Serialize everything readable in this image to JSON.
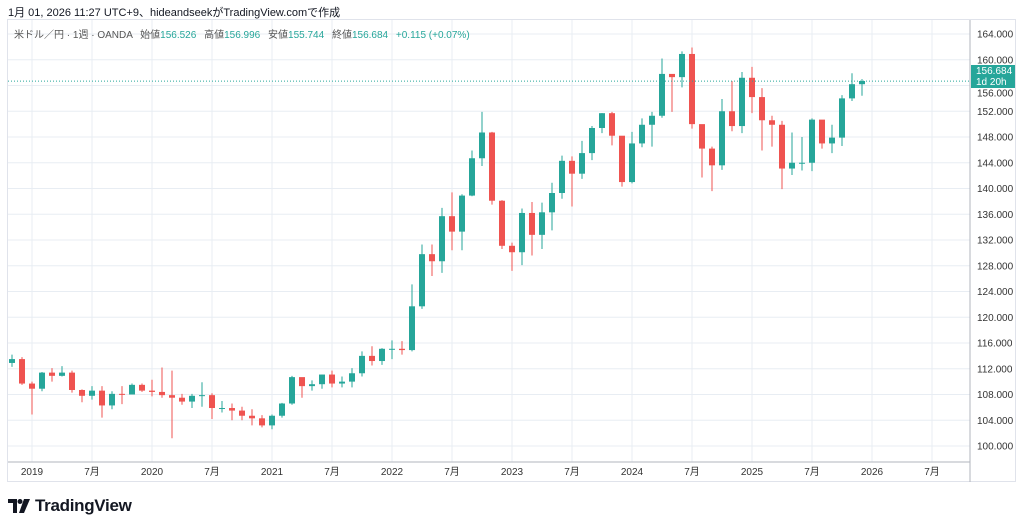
{
  "caption": "1月 01, 2026 11:27 UTC+9、hideandseekがTradingView.comで作成",
  "legend": {
    "symbol": "米ドル／円 · 1週 · OANDA",
    "open_label": "始値",
    "open": "156.526",
    "high_label": "高値",
    "high": "156.996",
    "low_label": "安値",
    "low": "155.744",
    "close_label": "終値",
    "close": "156.684",
    "change": "+0.115 (+0.07%)"
  },
  "price_label": {
    "price": "156.684",
    "countdown": "1d 20h"
  },
  "logo": {
    "text": "TradingView"
  },
  "colors": {
    "up": "#26a69a",
    "down": "#ef5350",
    "grid": "#e8edf3",
    "accent": "#26a69a"
  },
  "chart_data": {
    "type": "candlestick",
    "interval": "1週",
    "note_resolution": "approximated monthly",
    "ylim": [
      97,
      166
    ],
    "yticks": [
      "100.000",
      "104.000",
      "108.000",
      "112.000",
      "116.000",
      "120.000",
      "124.000",
      "128.000",
      "132.000",
      "136.000",
      "140.000",
      "144.000",
      "148.000",
      "152.000",
      "156.000",
      "160.000",
      "164.000"
    ],
    "xticks": [
      "2019",
      "7月",
      "2020",
      "7月",
      "2021",
      "7月",
      "2022",
      "7月",
      "2023",
      "7月",
      "2024",
      "7月",
      "2025",
      "7月",
      "2026",
      "7月"
    ],
    "xrange": [
      "2018-10",
      "2026-10"
    ],
    "current_price": 156.684,
    "start": "2018-11",
    "open_first": 112.9,
    "close": [
      113.5,
      109.7,
      108.9,
      111.4,
      110.9,
      111.4,
      108.7,
      107.8,
      108.6,
      106.3,
      108.1,
      108.0,
      109.5,
      108.6,
      108.4,
      107.9,
      107.5,
      106.9,
      107.8,
      107.9,
      105.9,
      105.9,
      105.5,
      104.7,
      104.3,
      103.2,
      104.7,
      106.6,
      110.7,
      109.3,
      109.6,
      111.1,
      109.7,
      110.0,
      111.3,
      114.0,
      113.2,
      115.1,
      115.1,
      114.9,
      121.7,
      129.8,
      128.7,
      135.7,
      133.3,
      138.9,
      144.7,
      148.7,
      138.1,
      131.1,
      130.1,
      136.2,
      132.8,
      136.3,
      139.3,
      144.3,
      142.3,
      145.5,
      149.4,
      151.7,
      148.2,
      141.0,
      147.0,
      149.9,
      151.3,
      157.8,
      157.3,
      160.9,
      150.0,
      146.2,
      143.6,
      152.0,
      149.7,
      157.2,
      154.2,
      150.6,
      149.9,
      143.1,
      144.0,
      144.0,
      150.7,
      147.0,
      147.9,
      154.0,
      156.2,
      156.7
    ],
    "high": [
      114.2,
      113.8,
      110.0,
      111.5,
      112.1,
      112.4,
      111.7,
      108.8,
      109.3,
      109.3,
      108.5,
      109.3,
      109.7,
      109.7,
      110.3,
      112.2,
      111.7,
      108.1,
      108.1,
      109.9,
      108.2,
      107.0,
      106.6,
      106.1,
      105.7,
      104.8,
      104.9,
      106.7,
      110.9,
      110.0,
      110.2,
      111.1,
      111.7,
      110.8,
      112.1,
      114.7,
      115.5,
      115.2,
      116.4,
      116.3,
      125.1,
      131.3,
      131.3,
      137.0,
      139.4,
      139.1,
      145.9,
      151.9,
      148.8,
      138.2,
      131.6,
      136.9,
      137.9,
      137.8,
      140.9,
      145.1,
      145.0,
      147.4,
      149.7,
      151.7,
      151.9,
      147.2,
      148.8,
      150.9,
      151.9,
      160.2,
      157.7,
      161.3,
      161.9,
      149.4,
      146.5,
      153.9,
      156.7,
      158.1,
      158.9,
      155.6,
      151.3,
      150.5,
      148.7,
      148.0,
      150.9,
      148.8,
      149.9,
      154.5,
      157.9,
      157.0
    ],
    "low": [
      112.3,
      109.5,
      104.9,
      108.5,
      110.0,
      110.8,
      108.3,
      106.8,
      107.2,
      104.4,
      105.7,
      106.5,
      108.2,
      108.4,
      107.7,
      107.5,
      101.2,
      106.4,
      105.9,
      106.1,
      104.2,
      105.2,
      104.0,
      104.0,
      103.2,
      102.9,
      102.6,
      104.4,
      106.4,
      107.5,
      108.6,
      108.9,
      109.1,
      109.1,
      109.1,
      110.8,
      112.5,
      112.6,
      113.5,
      114.2,
      114.7,
      121.3,
      126.4,
      126.9,
      130.4,
      130.4,
      138.8,
      143.5,
      137.5,
      130.6,
      127.2,
      128.1,
      129.6,
      130.6,
      133.5,
      138.4,
      137.2,
      141.5,
      144.4,
      148.6,
      146.7,
      140.3,
      140.8,
      146.4,
      146.5,
      151.0,
      151.9,
      155.7,
      149.3,
      141.7,
      139.6,
      142.9,
      148.9,
      148.6,
      151.7,
      145.9,
      146.5,
      139.9,
      142.1,
      142.8,
      142.7,
      146.2,
      145.5,
      146.6,
      153.6,
      154.4
    ]
  }
}
